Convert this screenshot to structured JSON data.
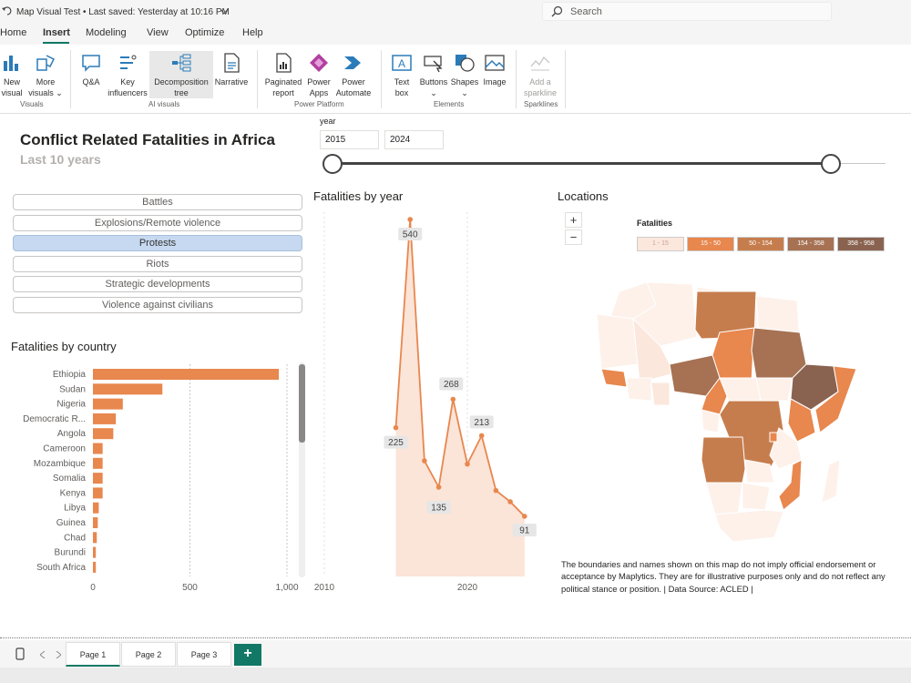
{
  "app": {
    "doc_title": "Map Visual Test • Last saved: Yesterday at 10:16 PM",
    "search_placeholder": "Search"
  },
  "menu": [
    "Home",
    "Insert",
    "Modeling",
    "View",
    "Optimize",
    "Help"
  ],
  "ribbon": {
    "new_visual": [
      "New",
      "visual"
    ],
    "more_visuals": [
      "More",
      "visuals"
    ],
    "qa": "Q&A",
    "key_influencers": [
      "Key",
      "influencers"
    ],
    "decomp": [
      "Decomposition",
      "tree"
    ],
    "narrative": "Narrative",
    "paginated": [
      "Paginated",
      "report"
    ],
    "power_apps": [
      "Power",
      "Apps"
    ],
    "power_automate": [
      "Power",
      "Automate"
    ],
    "text_box": [
      "Text",
      "box"
    ],
    "buttons": "Buttons",
    "shapes": "Shapes",
    "image": "Image",
    "sparkline": [
      "Add a",
      "sparkline"
    ],
    "groups": [
      "Visuals",
      "AI visuals",
      "Power Platform",
      "Elements",
      "Sparklines"
    ]
  },
  "report": {
    "title": "Conflict Related Fatalities in Africa",
    "subtitle": "Last 10 years",
    "slider": {
      "label": "year",
      "from": "2015",
      "to": "2024"
    },
    "event_types": [
      "Battles",
      "Explosions/Remote violence",
      "Protests",
      "Riots",
      "Strategic developments",
      "Violence against civilians"
    ],
    "selected_event_type": "Protests",
    "bar_title": "Fatalities by country",
    "line_title": "Fatalities by year",
    "map_title": "Locations",
    "map_legend_title": "Fatalities",
    "map_legend": [
      {
        "label": "1 - 15",
        "color": "#fbe7dc"
      },
      {
        "label": "15 - 50",
        "color": "#e8874e"
      },
      {
        "label": "50 - 154",
        "color": "#c67d4d"
      },
      {
        "label": "154 - 358",
        "color": "#a67253"
      },
      {
        "label": "358 - 958",
        "color": "#8a6350"
      }
    ],
    "zoom_in": "+",
    "zoom_out": "−",
    "disclaimer": "The boundaries and names shown on this map do not imply official endorsement or acceptance by Maplytics. They are for illustrative purposes only and do not reflect any political stance or position. | Data Source: ACLED |"
  },
  "chart_data": [
    {
      "type": "bar",
      "title": "Fatalities by country",
      "categories": [
        "Ethiopia",
        "Sudan",
        "Nigeria",
        "Democratic R...",
        "Angola",
        "Cameroon",
        "Mozambique",
        "Somalia",
        "Kenya",
        "Libya",
        "Guinea",
        "Chad",
        "Burundi",
        "South Africa"
      ],
      "values": [
        958,
        358,
        154,
        118,
        105,
        50,
        50,
        50,
        50,
        30,
        25,
        20,
        15,
        15
      ],
      "xticks": [
        "0",
        "500",
        "1,000"
      ],
      "xlim": [
        0,
        1000
      ],
      "color": "#e8874e"
    },
    {
      "type": "area",
      "title": "Fatalities by year",
      "x": [
        2015,
        2016,
        2017,
        2018,
        2019,
        2020,
        2021,
        2022,
        2023,
        2024
      ],
      "values": [
        225,
        540,
        175,
        135,
        268,
        170,
        213,
        130,
        113,
        91
      ],
      "labels": {
        "2016": "540",
        "2015": "225",
        "2019": "268",
        "2018": "135",
        "2021": "213",
        "2024": "91"
      },
      "xticks": [
        "2010",
        "2020"
      ],
      "xlim": [
        2010,
        2025
      ],
      "color": "#e8874e"
    }
  ],
  "pages": [
    "Page 1",
    "Page 2",
    "Page 3"
  ],
  "add_page": "+"
}
